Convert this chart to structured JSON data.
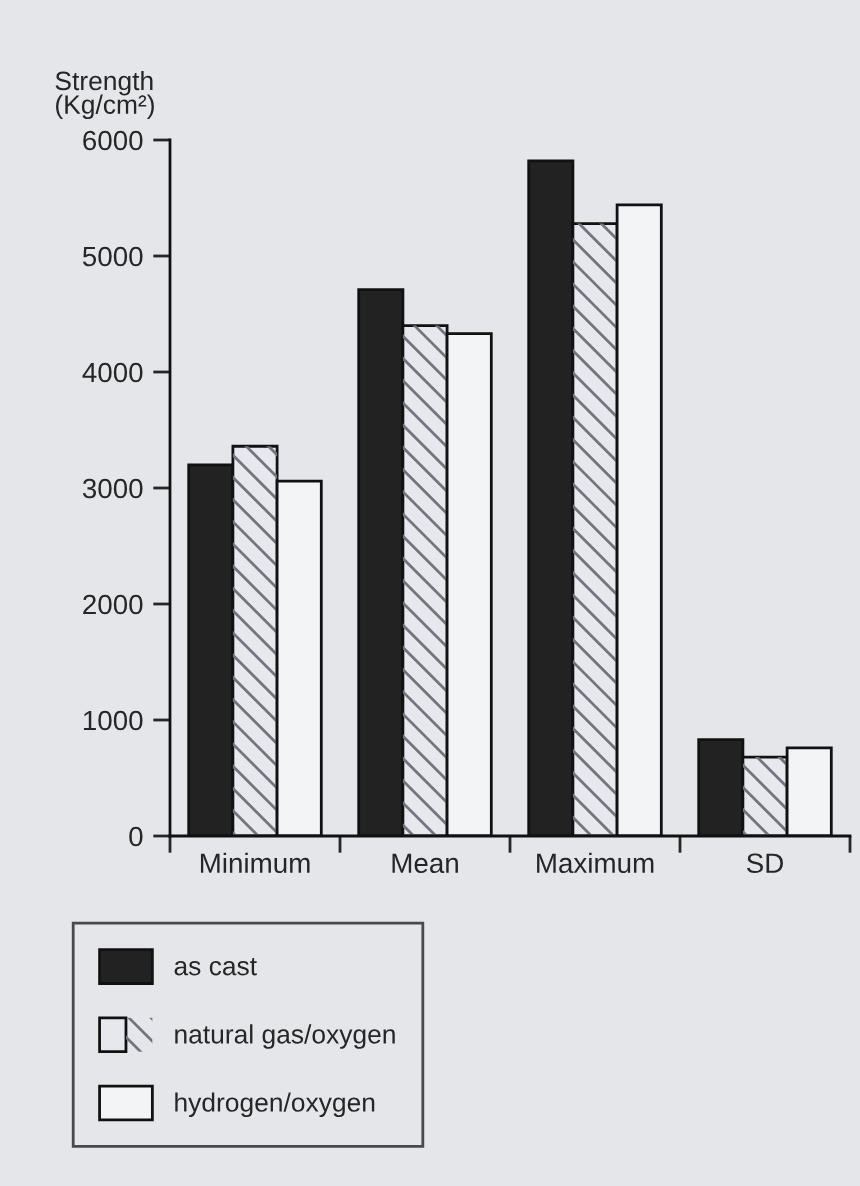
{
  "chart_data": {
    "type": "bar",
    "ylabel": "Strength\n(Kg/cm²)",
    "categories": [
      "Minimum",
      "Mean",
      "Maximum",
      "SD"
    ],
    "series": [
      {
        "name": "as cast",
        "color": "#222222",
        "values": [
          3200,
          4710,
          5820,
          830
        ]
      },
      {
        "name": "natural gas/oxygen",
        "color": "#e6e8ee",
        "values": [
          3360,
          4400,
          5280,
          680
        ]
      },
      {
        "name": "hydrogen/oxygen",
        "color": "#f3f4f6",
        "values": [
          3060,
          4330,
          5440,
          760
        ]
      }
    ],
    "ylim": [
      0,
      6000
    ],
    "yticks": [
      0,
      1000,
      2000,
      3000,
      4000,
      5000,
      6000
    ],
    "grid": false,
    "legend": "bottom"
  }
}
